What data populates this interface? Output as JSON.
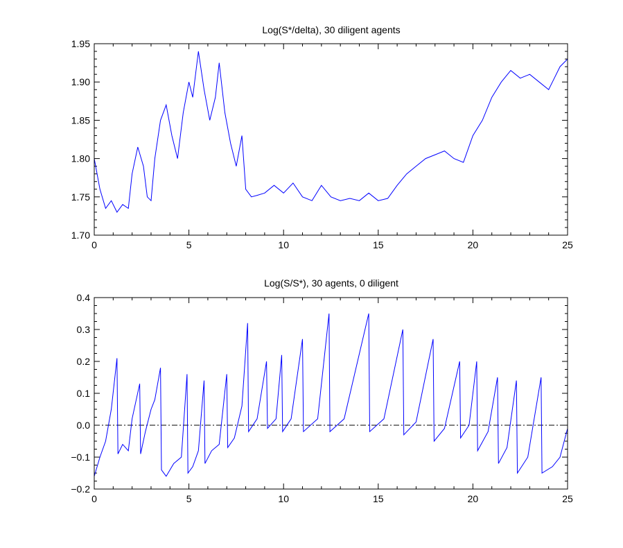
{
  "chart_data": [
    {
      "type": "line",
      "title": "Log(S*/delta), 30 diligent agents",
      "xlabel": "",
      "ylabel": "",
      "xlim": [
        0,
        25
      ],
      "ylim": [
        1.7,
        1.95
      ],
      "xticks": [
        "0",
        "5",
        "10",
        "15",
        "20",
        "25"
      ],
      "yticks": [
        "1.70",
        "1.75",
        "1.80",
        "1.85",
        "1.90",
        "1.95"
      ],
      "grid": false,
      "line_color": "#0000ff",
      "series": [
        {
          "x": [
            0,
            0.3,
            0.6,
            0.9,
            1.2,
            1.5,
            1.8,
            2.0,
            2.3,
            2.6,
            2.8,
            3.0,
            3.2,
            3.5,
            3.8,
            4.1,
            4.4,
            4.7,
            5.0,
            5.2,
            5.5,
            5.8,
            6.1,
            6.4,
            6.6,
            6.9,
            7.2,
            7.5,
            7.8,
            8.0,
            8.3,
            8.6,
            9.0,
            9.5,
            10.0,
            10.5,
            11.0,
            11.5,
            12.0,
            12.5,
            13.0,
            13.5,
            14.0,
            14.5,
            15.0,
            15.5,
            16.0,
            16.5,
            17.0,
            17.5,
            18.0,
            18.5,
            19.0,
            19.5,
            20.0,
            20.5,
            21.0,
            21.5,
            22.0,
            22.5,
            23.0,
            23.5,
            24.0,
            24.3,
            24.6,
            25.0
          ],
          "y": [
            1.8,
            1.76,
            1.735,
            1.745,
            1.73,
            1.74,
            1.735,
            1.78,
            1.815,
            1.79,
            1.75,
            1.745,
            1.8,
            1.85,
            1.87,
            1.83,
            1.8,
            1.86,
            1.9,
            1.88,
            1.94,
            1.89,
            1.85,
            1.88,
            1.925,
            1.86,
            1.82,
            1.79,
            1.83,
            1.76,
            1.75,
            1.752,
            1.755,
            1.765,
            1.755,
            1.768,
            1.75,
            1.745,
            1.765,
            1.75,
            1.745,
            1.748,
            1.745,
            1.755,
            1.745,
            1.748,
            1.765,
            1.78,
            1.79,
            1.8,
            1.805,
            1.81,
            1.8,
            1.795,
            1.83,
            1.85,
            1.88,
            1.9,
            1.915,
            1.905,
            1.91,
            1.9,
            1.89,
            1.905,
            1.92,
            1.93
          ]
        }
      ]
    },
    {
      "type": "line",
      "title": "Log(S/S*), 30 agents, 0 diligent",
      "xlabel": "",
      "ylabel": "",
      "xlim": [
        0,
        25
      ],
      "ylim": [
        -0.2,
        0.4
      ],
      "xticks": [
        "0",
        "5",
        "10",
        "15",
        "20",
        "25"
      ],
      "yticks": [
        "−0.2",
        "−0.1",
        "0.0",
        "0.1",
        "0.2",
        "0.3",
        "0.4"
      ],
      "grid": false,
      "reference_line": 0.0,
      "line_color": "#0000ff",
      "series": [
        {
          "x": [
            0,
            0.3,
            0.6,
            0.9,
            1.2,
            1.25,
            1.5,
            1.8,
            2.0,
            2.4,
            2.45,
            2.7,
            3.0,
            3.2,
            3.5,
            3.55,
            3.8,
            4.2,
            4.6,
            4.9,
            4.95,
            5.2,
            5.5,
            5.8,
            5.85,
            6.2,
            6.6,
            7.0,
            7.05,
            7.4,
            7.8,
            8.1,
            8.15,
            8.6,
            9.1,
            9.15,
            9.6,
            9.9,
            9.95,
            10.4,
            11.0,
            11.05,
            11.8,
            12.4,
            12.45,
            13.2,
            14.5,
            14.55,
            15.3,
            16.3,
            16.35,
            17.0,
            17.9,
            17.95,
            18.5,
            19.3,
            19.35,
            19.8,
            20.2,
            20.25,
            20.8,
            21.3,
            21.35,
            21.8,
            22.3,
            22.35,
            22.9,
            23.6,
            23.65,
            24.2,
            24.6,
            25.0
          ],
          "y": [
            -0.16,
            -0.1,
            -0.05,
            0.05,
            0.21,
            -0.09,
            -0.06,
            -0.08,
            0.02,
            0.13,
            -0.09,
            -0.02,
            0.05,
            0.08,
            0.18,
            -0.14,
            -0.16,
            -0.12,
            -0.1,
            0.16,
            -0.15,
            -0.13,
            -0.08,
            0.14,
            -0.12,
            -0.08,
            -0.06,
            0.16,
            -0.07,
            -0.04,
            0.06,
            0.32,
            -0.02,
            0.02,
            0.2,
            -0.01,
            0.02,
            0.22,
            -0.02,
            0.02,
            0.27,
            -0.02,
            0.02,
            0.35,
            -0.02,
            0.02,
            0.35,
            -0.02,
            0.02,
            0.3,
            -0.03,
            0.01,
            0.27,
            -0.05,
            -0.01,
            0.2,
            -0.04,
            0.0,
            0.2,
            -0.08,
            -0.02,
            0.15,
            -0.12,
            -0.07,
            0.14,
            -0.15,
            -0.1,
            0.15,
            -0.15,
            -0.13,
            -0.1,
            -0.01
          ]
        }
      ]
    }
  ]
}
